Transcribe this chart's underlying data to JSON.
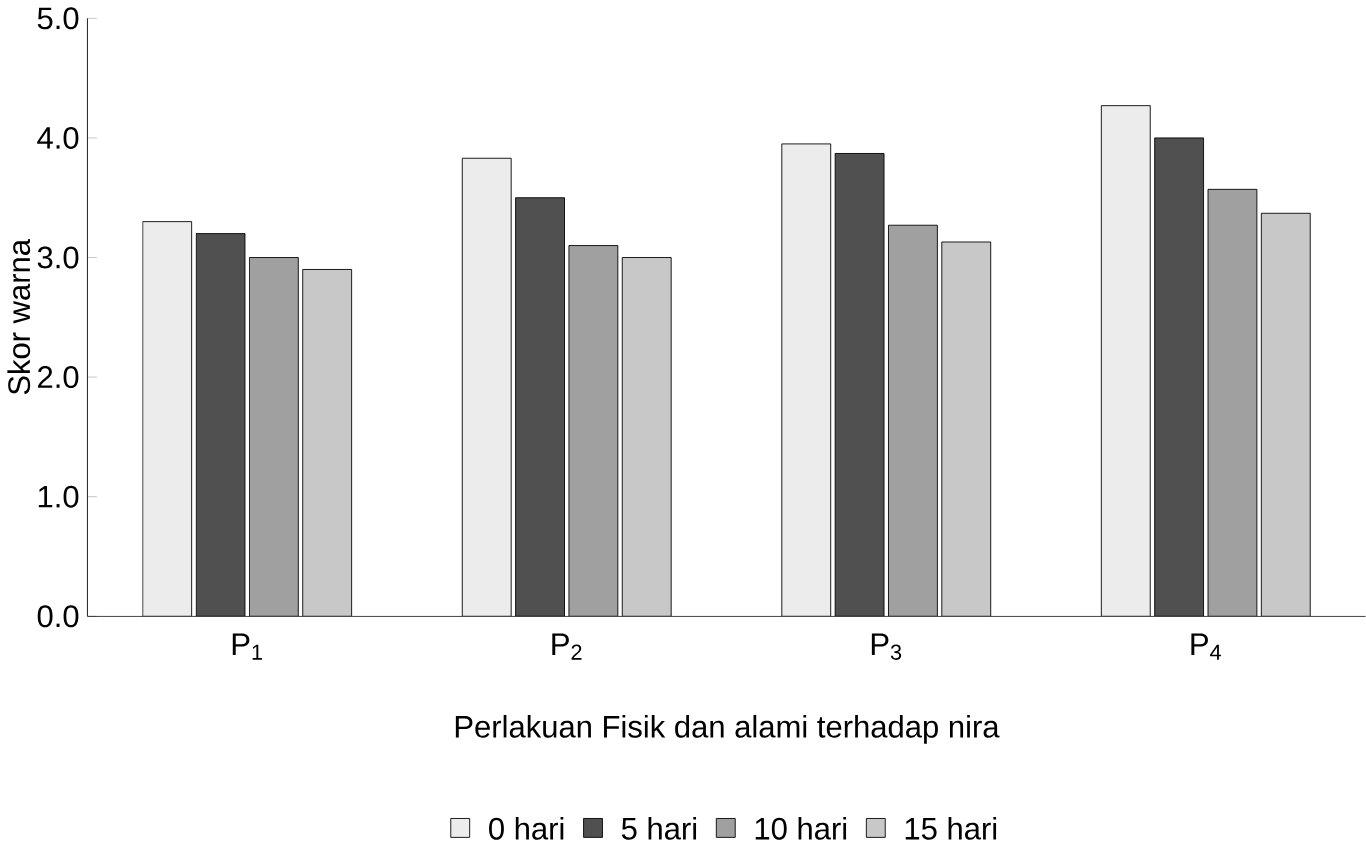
{
  "chart_data": {
    "type": "bar",
    "xlabel": "Perlakuan Fisik dan alami terhadap nira",
    "ylabel": "Skor  warna",
    "categories": [
      "P$_{1}$",
      "P$_{2}$",
      "P$_{3}$",
      "P$_{4}$"
    ],
    "series": [
      {
        "name": "0 hari",
        "color": "#ececec",
        "values": [
          3.3,
          3.83,
          3.95,
          4.27
        ]
      },
      {
        "name": "5 hari",
        "color": "#505050",
        "values": [
          3.2,
          3.5,
          3.87,
          4.0
        ]
      },
      {
        "name": "10 hari",
        "color": "#a0a0a0",
        "values": [
          3.0,
          3.1,
          3.27,
          3.57
        ]
      },
      {
        "name": "15 hari",
        "color": "#c8c8c8",
        "values": [
          2.9,
          3.0,
          3.13,
          3.37
        ]
      }
    ],
    "ylim": [
      0,
      5
    ],
    "yticks": [
      {
        "value": 0,
        "label": "0.0"
      },
      {
        "value": 1,
        "label": "1.0"
      },
      {
        "value": 2,
        "label": "2.0"
      },
      {
        "value": 3,
        "label": "3.0"
      },
      {
        "value": 4,
        "label": "4.0"
      },
      {
        "value": 5,
        "label": "5.0"
      }
    ],
    "grid": false,
    "legend": "bottom"
  }
}
